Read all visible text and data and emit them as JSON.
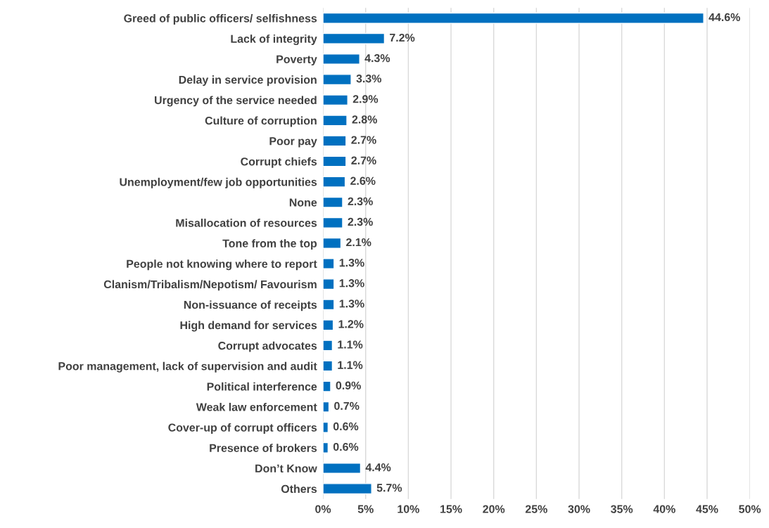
{
  "chart_data": {
    "type": "bar",
    "orientation": "horizontal",
    "categories": [
      "Greed of public officers/ selfishness",
      "Lack of integrity",
      "Poverty",
      "Delay in service provision",
      "Urgency of the service needed",
      "Culture of corruption",
      "Poor pay",
      "Corrupt chiefs",
      "Unemployment/few job opportunities",
      "None",
      "Misallocation of resources",
      "Tone from the top",
      "People not knowing where to report",
      "Clanism/Tribalism/Nepotism/ Favourism",
      "Non-issuance of receipts",
      "High demand for services",
      "Corrupt advocates",
      "Poor management, lack of supervision and audit",
      "Political interference",
      "Weak law enforcement",
      "Cover-up of corrupt officers",
      "Presence of brokers",
      "Don’t Know",
      "Others"
    ],
    "values": [
      44.6,
      7.2,
      4.3,
      3.3,
      2.9,
      2.8,
      2.7,
      2.7,
      2.6,
      2.3,
      2.3,
      2.1,
      1.3,
      1.3,
      1.3,
      1.2,
      1.1,
      1.1,
      0.9,
      0.7,
      0.6,
      0.6,
      4.4,
      5.7
    ],
    "value_labels": [
      "44.6%",
      "7.2%",
      "4.3%",
      "3.3%",
      "2.9%",
      "2.8%",
      "2.7%",
      "2.7%",
      "2.6%",
      "2.3%",
      "2.3%",
      "2.1%",
      "1.3%",
      "1.3%",
      "1.3%",
      "1.2%",
      "1.1%",
      "1.1%",
      "0.9%",
      "0.7%",
      "0.6%",
      "0.6%",
      "4.4%",
      "5.7%"
    ],
    "color": "#0070c0",
    "xlim": [
      0,
      50
    ],
    "xticks": [
      {
        "value": 0,
        "label": "0%"
      },
      {
        "value": 5,
        "label": "5%"
      },
      {
        "value": 10,
        "label": "10%"
      },
      {
        "value": 15,
        "label": "15%"
      },
      {
        "value": 20,
        "label": "20%"
      },
      {
        "value": 25,
        "label": "25%"
      },
      {
        "value": 30,
        "label": "30%"
      },
      {
        "value": 35,
        "label": "35%"
      },
      {
        "value": 40,
        "label": "40%"
      },
      {
        "value": 45,
        "label": "45%"
      },
      {
        "value": 50,
        "label": "50%"
      }
    ],
    "grid": "x"
  }
}
